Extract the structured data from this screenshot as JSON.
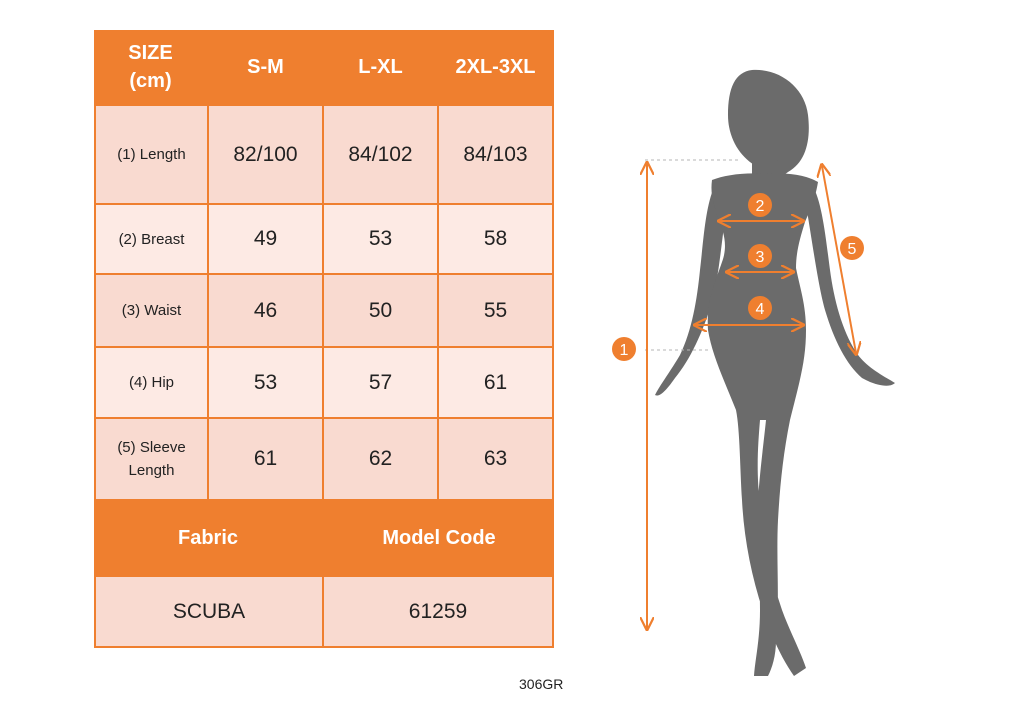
{
  "table": {
    "header": {
      "size_label_line1": "SIZE",
      "size_label_line2": "(cm)",
      "sizes": [
        "S-M",
        "L-XL",
        "2XL-3XL"
      ]
    },
    "rows": [
      {
        "label": "(1) Length",
        "values": [
          "82/100",
          "84/102",
          "84/103"
        ]
      },
      {
        "label": "(2) Breast",
        "values": [
          "49",
          "53",
          "58"
        ]
      },
      {
        "label": "(3) Waist",
        "values": [
          "46",
          "50",
          "55"
        ]
      },
      {
        "label": "(4) Hip",
        "values": [
          "53",
          "57",
          "61"
        ]
      },
      {
        "label_line1": "(5) Sleeve",
        "label_line2": "Length",
        "values": [
          "61",
          "62",
          "63"
        ]
      }
    ],
    "footer_header": {
      "fabric": "Fabric",
      "model_code": "Model Code"
    },
    "footer_values": {
      "fabric": "SCUBA",
      "model_code": "61259"
    }
  },
  "figure": {
    "markers": [
      "1",
      "2",
      "3",
      "4",
      "5"
    ]
  },
  "product_code": "306GR",
  "colors": {
    "accent": "#ef7f2f",
    "row_dark": "#f9dad0",
    "row_light": "#fdeae4",
    "silhouette": "#6b6b6b"
  }
}
